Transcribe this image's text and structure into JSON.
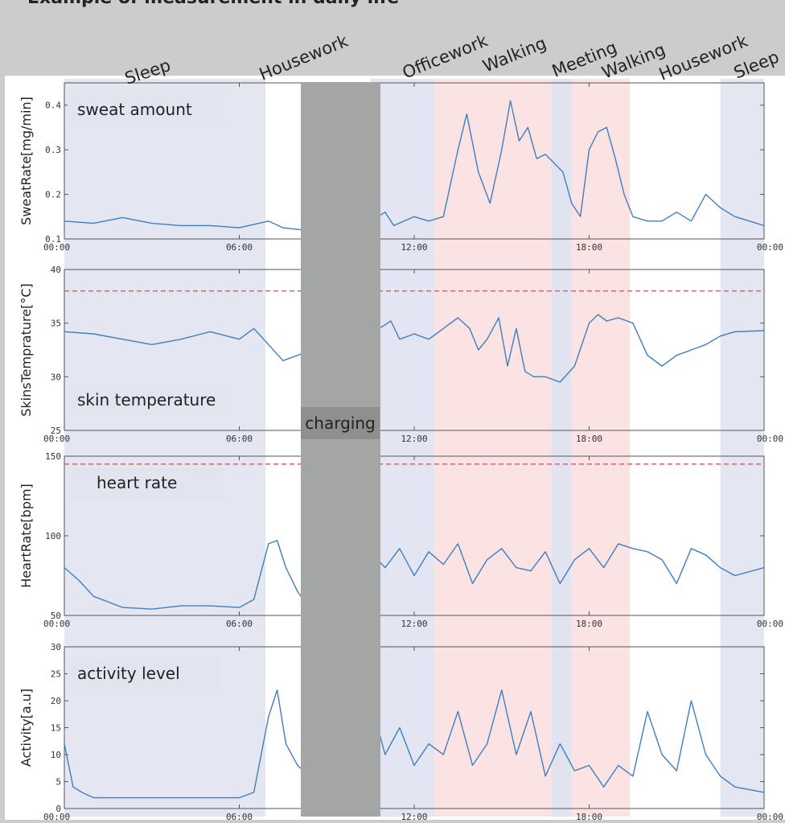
{
  "header": {
    "title": "Example of measurement in daily life"
  },
  "activities": [
    "Sleep",
    "Housework",
    "Officework",
    "Walking",
    "Meeting",
    "Walking",
    "Housework",
    "Sleep"
  ],
  "charging_label": "charging",
  "colors": {
    "background": "#cccccc",
    "plot_bg": "#ffffff",
    "sleep_band": "#e4e6f2",
    "office_band": "#e3e5f2",
    "walking_band": "#fbe3e3",
    "meeting_band": "#e1e3f0",
    "charging": "#a4a6a6",
    "line": "#3f7fbf",
    "threshold": "#e06060",
    "label_box": "#e2e4f0"
  },
  "chart_data": [
    {
      "type": "line",
      "ylabel": "SweatRate[mg/min]",
      "panel_label": "sweat amount",
      "ylim": [
        0.1,
        0.45
      ],
      "yticks": [
        "0.1",
        "0.2",
        "0.3",
        "0.4"
      ],
      "xticks": [
        "00:00",
        "06:00",
        "12:00",
        "18:00",
        "00:00"
      ],
      "series": [
        {
          "segments": [
            {
              "x": [
                0,
                1,
                2,
                3,
                4,
                5,
                6,
                7,
                7.5,
                8.2
              ],
              "y": [
                0.14,
                0.135,
                0.148,
                0.135,
                0.13,
                0.13,
                0.125,
                0.14,
                0.125,
                0.12
              ]
            },
            {
              "x": [
                10.5,
                11,
                11.3,
                12,
                12.5,
                13,
                13.5,
                13.8,
                14.2,
                14.6,
                15,
                15.3,
                15.6,
                15.9,
                16.2,
                16.5,
                16.8,
                17.1,
                17.4,
                17.7,
                18.0,
                18.3,
                18.6,
                18.9,
                19.2,
                19.5,
                20,
                20.5,
                21,
                21.5,
                22,
                22.5,
                23,
                24
              ],
              "y": [
                0.14,
                0.16,
                0.13,
                0.15,
                0.14,
                0.15,
                0.3,
                0.38,
                0.25,
                0.18,
                0.3,
                0.41,
                0.32,
                0.35,
                0.28,
                0.29,
                0.27,
                0.25,
                0.18,
                0.15,
                0.3,
                0.34,
                0.35,
                0.28,
                0.2,
                0.15,
                0.14,
                0.14,
                0.16,
                0.14,
                0.2,
                0.17,
                0.15,
                0.13
              ]
            }
          ]
        }
      ]
    },
    {
      "type": "line",
      "ylabel": "SkinsTemprature[°C]",
      "panel_label": "skin temperature",
      "ylim": [
        25,
        40
      ],
      "yticks": [
        "25",
        "30",
        "35",
        "40"
      ],
      "xticks": [
        "00:00",
        "06:00",
        "12:00",
        "18:00",
        "00:00"
      ],
      "threshold": 38,
      "series": [
        {
          "segments": [
            {
              "x": [
                0,
                1,
                2,
                3,
                4,
                5,
                6,
                6.5,
                7,
                7.5,
                8.2
              ],
              "y": [
                34.2,
                34.0,
                33.5,
                33.0,
                33.5,
                34.2,
                33.5,
                34.5,
                33.0,
                31.5,
                32.2
              ]
            },
            {
              "x": [
                10.5,
                10.8,
                11.2,
                11.5,
                12,
                12.5,
                13,
                13.5,
                13.9,
                14.2,
                14.5,
                14.9,
                15.2,
                15.5,
                15.8,
                16.1,
                16.5,
                17,
                17.5,
                18.0,
                18.3,
                18.6,
                19,
                19.5,
                20,
                20.5,
                21,
                21.5,
                22,
                22.5,
                23,
                24
              ],
              "y": [
                30.5,
                34.5,
                35.2,
                33.5,
                34.0,
                33.5,
                34.5,
                35.5,
                34.5,
                32.5,
                33.5,
                35.5,
                31.0,
                34.5,
                30.5,
                30.0,
                30.0,
                29.5,
                31.0,
                35.0,
                35.8,
                35.2,
                35.5,
                35.0,
                32.0,
                31.0,
                32.0,
                32.5,
                33.0,
                33.8,
                34.2,
                34.3
              ]
            }
          ]
        }
      ]
    },
    {
      "type": "line",
      "ylabel": "HeartRate[bpm]",
      "panel_label": "heart rate",
      "ylim": [
        50,
        150
      ],
      "yticks": [
        "50",
        "100",
        "150"
      ],
      "xticks": [
        "00:00",
        "06:00",
        "12:00",
        "18:00",
        "00:00"
      ],
      "threshold": 145,
      "series": [
        {
          "segments": [
            {
              "x": [
                0,
                0.5,
                1,
                2,
                3,
                4,
                5,
                6,
                6.5,
                7,
                7.3,
                7.6,
                8,
                8.2
              ],
              "y": [
                80,
                72,
                62,
                55,
                54,
                56,
                56,
                55,
                60,
                95,
                97,
                80,
                65,
                60
              ]
            },
            {
              "x": [
                10.5,
                11,
                11.5,
                12,
                12.5,
                13,
                13.5,
                14,
                14.5,
                15,
                15.5,
                16,
                16.5,
                17,
                17.5,
                18,
                18.5,
                19,
                19.5,
                20,
                20.5,
                21,
                21.5,
                22,
                22.5,
                23,
                24
              ],
              "y": [
                90,
                80,
                92,
                75,
                90,
                82,
                95,
                70,
                85,
                92,
                80,
                78,
                90,
                70,
                85,
                92,
                80,
                95,
                92,
                90,
                85,
                70,
                92,
                88,
                80,
                75,
                80
              ]
            }
          ]
        }
      ]
    },
    {
      "type": "line",
      "ylabel": "Activity[a.u]",
      "panel_label": "activity level",
      "ylim": [
        0,
        30
      ],
      "yticks": [
        "0",
        "5",
        "10",
        "15",
        "20",
        "25",
        "30"
      ],
      "xticks": [
        "00:00",
        "06:00",
        "12:00",
        "18:00",
        "00:00"
      ],
      "series": [
        {
          "segments": [
            {
              "x": [
                0,
                0.3,
                0.6,
                1,
                2,
                3,
                4,
                5,
                6,
                6.5,
                7,
                7.3,
                7.6,
                8,
                8.2
              ],
              "y": [
                12,
                4,
                3,
                2,
                2,
                2,
                2,
                2,
                2,
                3,
                17,
                22,
                12,
                8,
                7
              ]
            },
            {
              "x": [
                10.5,
                11,
                11.5,
                12,
                12.5,
                13,
                13.5,
                14,
                14.5,
                15,
                15.5,
                16,
                16.5,
                17,
                17.5,
                18,
                18.5,
                19,
                19.5,
                20,
                20.5,
                21,
                21.5,
                22,
                22.5,
                23,
                24
              ],
              "y": [
                20,
                10,
                15,
                8,
                12,
                10,
                18,
                8,
                12,
                22,
                10,
                18,
                6,
                12,
                7,
                8,
                4,
                8,
                6,
                18,
                10,
                7,
                20,
                10,
                6,
                4,
                3
              ]
            }
          ]
        }
      ]
    }
  ]
}
